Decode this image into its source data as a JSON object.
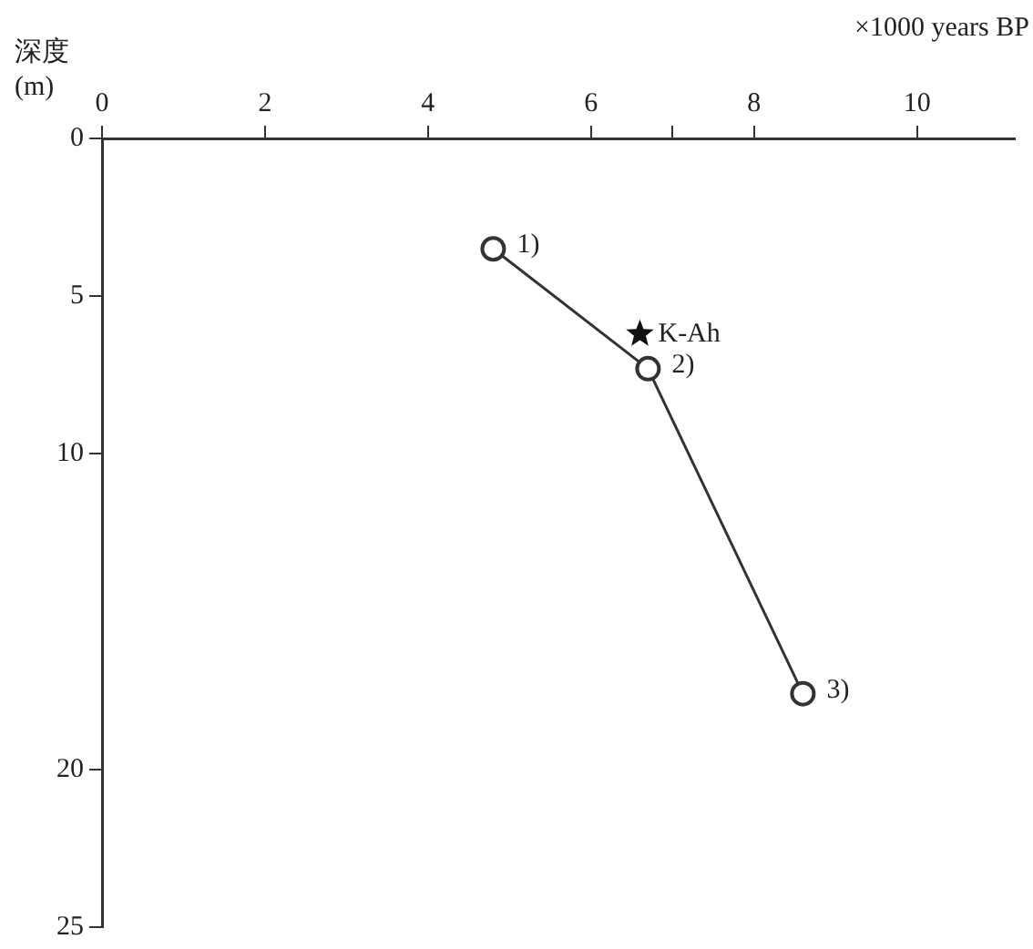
{
  "chart_data": {
    "type": "line",
    "xlabel": "×1000 years BP",
    "ylabel": "深度 (m)",
    "xlim": [
      0,
      11.2
    ],
    "xticks": [
      0,
      2,
      4,
      6,
      {
        "value": 7,
        "label": null
      },
      8,
      10
    ],
    "ylim": [
      25,
      0
    ],
    "yticks": [
      0,
      5,
      10,
      20,
      25
    ],
    "grid": false,
    "legend": false,
    "marker": "circle",
    "line_style": "solid",
    "series": [
      {
        "color": "#333333",
        "x": [
          4.8,
          6.7,
          8.6
        ],
        "values": [
          3.5,
          7.3,
          17.6
        ]
      },
      {
        "type": "scatter",
        "name": "K-Ah",
        "marker": "star",
        "color": "#111111",
        "x": [
          6.6
        ],
        "values": [
          6.2
        ]
      }
    ],
    "annotations": [
      {
        "text": "1)",
        "x": 4.8,
        "y": 3.5
      },
      {
        "text": "2)",
        "x": 6.7,
        "y": 7.3
      },
      {
        "text": "3)",
        "x": 8.6,
        "y": 17.6
      }
    ]
  }
}
